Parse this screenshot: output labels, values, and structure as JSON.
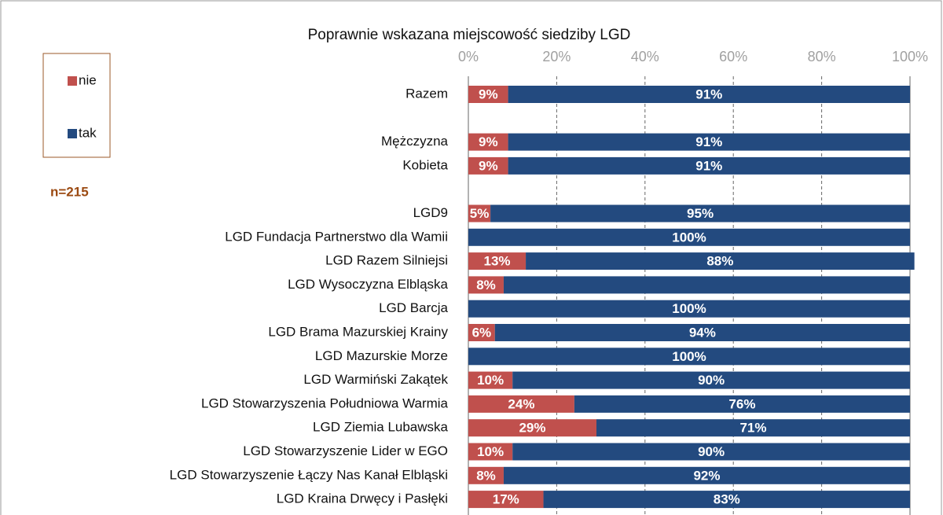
{
  "chart_data": {
    "type": "stacked_bar_horizontal",
    "title": "Poprawnie wskazana miejscowość siedziby LGD",
    "annotation": "n=215",
    "categories": [
      "Razem",
      null,
      "Mężczyzna",
      "Kobieta",
      null,
      "LGD9",
      "LGD Fundacja Partnerstwo dla Wamii",
      "LGD Razem Silniejsi",
      "LGD Wysoczyzna Elbląska",
      "LGD Barcja",
      "LGD Brama Mazurskiej Krainy",
      "LGD Mazurskie Morze",
      "LGD Warmiński Zakątek",
      "LGD Stowarzyszenia  Południowa Warmia",
      "LGD Ziemia Lubawska",
      "LGD Stowarzyszenie Lider w EGO",
      "LGD Stowarzyszenie Łączy Nas Kanał Elbląski",
      "LGD Kraina Drwęcy i Pasłęki"
    ],
    "series": [
      {
        "name": "nie",
        "color": "#c0504d",
        "values": [
          9,
          null,
          9,
          9,
          null,
          5,
          0,
          13,
          8,
          0,
          6,
          0,
          10,
          24,
          29,
          10,
          8,
          17
        ],
        "value_labels": [
          "9%",
          null,
          "9%",
          "9%",
          null,
          "5%",
          null,
          "13%",
          "8%",
          null,
          "6%",
          null,
          "10%",
          "24%",
          "29%",
          "10%",
          "8%",
          "17%"
        ]
      },
      {
        "name": "tak",
        "color": "#234a7f",
        "values": [
          91,
          null,
          91,
          91,
          null,
          95,
          100,
          88,
          92,
          100,
          94,
          100,
          90,
          76,
          71,
          90,
          92,
          83
        ],
        "value_labels": [
          "91%",
          null,
          "91%",
          "91%",
          null,
          "95%",
          "100%",
          "88%",
          null,
          "100%",
          "94%",
          "100%",
          "90%",
          "76%",
          "71%",
          "90%",
          "92%",
          "83%"
        ]
      }
    ],
    "xlim": [
      0,
      100
    ],
    "xticks": [
      {
        "value": 0,
        "label": "0%"
      },
      {
        "value": 20,
        "label": "20%"
      },
      {
        "value": 40,
        "label": "40%"
      },
      {
        "value": 60,
        "label": "60%"
      },
      {
        "value": 80,
        "label": "80%"
      },
      {
        "value": 100,
        "label": "100%"
      }
    ],
    "grid": true
  }
}
